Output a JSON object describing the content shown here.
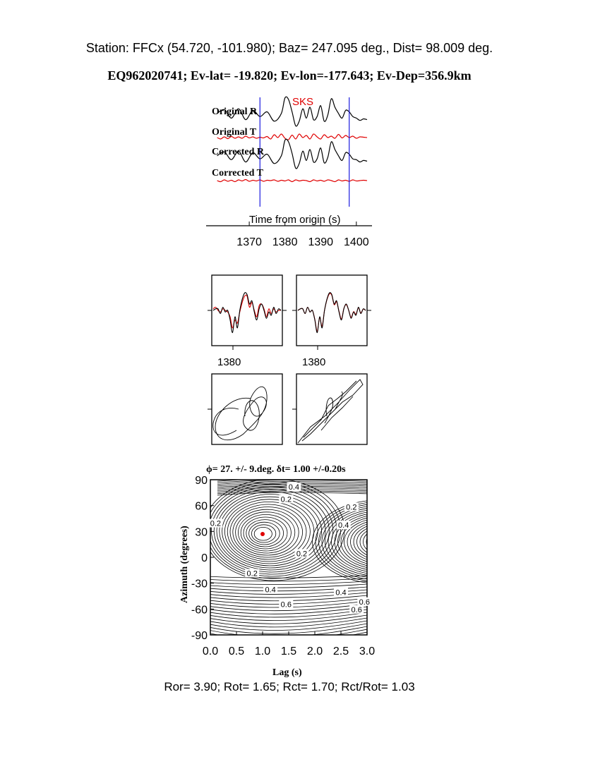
{
  "header": {
    "station_line": "Station: FFCx (54.720, -101.980); Baz=  247.095 deg., Dist=   98.009 deg.",
    "event_line": "EQ962020741; Ev-lat= -19.820; Ev-lon=-177.643; Ev-Dep=356.9km"
  },
  "footer": {
    "ratio_line": "Ror= 3.90; Rot= 1.65; Rct= 1.70; Rct/Rot= 1.03"
  },
  "colors": {
    "radial": "#000000",
    "transverse": "#e00000",
    "window_marker": "#1a1adf",
    "phase_label": "#e00000",
    "best_fit_dot": "#e00000"
  },
  "chart_data": [
    {
      "type": "line",
      "panel": "seismograms",
      "phase_label": "SKS",
      "trace_labels": [
        "Original R",
        "Original T",
        "Corrected R",
        "Corrected T"
      ],
      "xlabel": "Time from origin (s)",
      "x_ticks": [
        1370,
        1380,
        1390,
        1400
      ],
      "xlim": [
        1359.5,
        1403
      ],
      "window": [
        1373,
        1398
      ],
      "series": [
        {
          "label": "Original R",
          "color": "radial",
          "x": [
            1361,
            1363,
            1365,
            1367,
            1369,
            1371,
            1373,
            1375,
            1377,
            1379,
            1380,
            1381,
            1382,
            1383,
            1384,
            1385,
            1386,
            1387,
            1388,
            1389,
            1390,
            1391,
            1392,
            1393,
            1394,
            1395,
            1396,
            1397,
            1398,
            1399,
            1400,
            1401,
            1402,
            1403
          ],
          "y": [
            0.1,
            0.35,
            -0.2,
            0.4,
            -0.3,
            0.3,
            -0.1,
            0.2,
            -0.4,
            0.1,
            1.1,
            1.0,
            0.2,
            -0.7,
            -0.4,
            0.4,
            -0.2,
            0.5,
            -0.3,
            -0.1,
            0.6,
            -0.4,
            0.0,
            1.05,
            0.5,
            0.1,
            -0.2,
            0.3,
            0.2,
            -0.1,
            -0.2,
            -0.35,
            -0.25,
            -0.3
          ]
        },
        {
          "label": "Original T",
          "color": "transverse",
          "x": [
            1361,
            1362,
            1363,
            1364,
            1365,
            1366,
            1367,
            1368,
            1369,
            1370,
            1371,
            1372,
            1373,
            1374,
            1375,
            1376,
            1377,
            1378,
            1379,
            1380,
            1381,
            1382,
            1383,
            1384,
            1385,
            1386,
            1387,
            1388,
            1389,
            1390,
            1391,
            1392,
            1393,
            1394,
            1395,
            1396,
            1397,
            1398,
            1399,
            1400,
            1401,
            1402,
            1403
          ],
          "y": [
            -0.3,
            -0.5,
            -0.2,
            -0.45,
            -0.15,
            -0.4,
            -0.2,
            -0.4,
            -0.1,
            -0.35,
            -0.2,
            -0.4,
            -0.25,
            -0.35,
            -0.15,
            -0.5,
            0.1,
            -0.3,
            0.2,
            -0.4,
            -0.6,
            0.05,
            -0.5,
            0.2,
            -0.3,
            0.0,
            -0.5,
            0.2,
            -0.2,
            -0.5,
            0.1,
            -0.3,
            -0.1,
            -0.4,
            0.15,
            -0.35,
            0.0,
            -0.3,
            -0.1,
            -0.4,
            -0.2,
            -0.25,
            -0.3
          ]
        },
        {
          "label": "Corrected R",
          "color": "radial",
          "x": [
            1361,
            1363,
            1365,
            1367,
            1369,
            1371,
            1373,
            1375,
            1377,
            1379,
            1380,
            1381,
            1382,
            1383,
            1384,
            1385,
            1386,
            1387,
            1388,
            1389,
            1390,
            1391,
            1392,
            1393,
            1394,
            1395,
            1396,
            1397,
            1398,
            1399,
            1400,
            1401,
            1402,
            1403
          ],
          "y": [
            0.1,
            0.35,
            -0.15,
            0.4,
            -0.3,
            0.3,
            -0.1,
            0.2,
            -0.4,
            0.1,
            1.1,
            1.0,
            0.25,
            -0.7,
            -0.4,
            0.4,
            -0.2,
            0.5,
            -0.3,
            -0.1,
            0.6,
            -0.35,
            0.0,
            1.0,
            0.5,
            0.1,
            -0.2,
            0.3,
            0.2,
            -0.1,
            -0.15,
            -0.3,
            -0.2,
            -0.25
          ]
        },
        {
          "label": "Corrected T",
          "color": "transverse",
          "x": [
            1361,
            1362,
            1363,
            1364,
            1365,
            1366,
            1367,
            1368,
            1369,
            1370,
            1371,
            1372,
            1373,
            1374,
            1375,
            1376,
            1377,
            1378,
            1379,
            1380,
            1381,
            1382,
            1383,
            1384,
            1385,
            1386,
            1387,
            1388,
            1389,
            1390,
            1391,
            1392,
            1393,
            1394,
            1395,
            1396,
            1397,
            1398,
            1399,
            1400,
            1401,
            1402,
            1403
          ],
          "y": [
            -0.3,
            -0.45,
            -0.2,
            -0.4,
            -0.25,
            -0.45,
            -0.2,
            -0.35,
            -0.15,
            -0.4,
            -0.25,
            -0.35,
            -0.2,
            -0.4,
            -0.25,
            -0.3,
            -0.2,
            -0.4,
            -0.25,
            -0.35,
            -0.2,
            -0.45,
            -0.2,
            -0.35,
            -0.25,
            -0.3,
            -0.45,
            -0.2,
            -0.35,
            -0.25,
            -0.4,
            -0.2,
            -0.3,
            -0.45,
            -0.2,
            -0.35,
            -0.25,
            -0.4,
            -0.2,
            -0.35,
            -0.3,
            -0.25,
            -0.3
          ]
        }
      ]
    },
    {
      "type": "line",
      "panel": "waveform-overlay",
      "charts": [
        {
          "name": "left",
          "x_tick_label": "1380",
          "black": [
            0.0,
            0.05,
            0.05,
            -0.1,
            0.1,
            -0.05,
            0.0,
            -0.3,
            -0.7,
            -0.2,
            -0.55,
            0.0,
            0.35,
            0.55,
            0.5,
            0.2,
            0.3,
            -0.05,
            -0.3,
            0.05,
            0.2,
            0.0,
            -0.25,
            -0.05,
            -0.15,
            0.1,
            -0.1,
            0.05,
            0.0
          ],
          "red": [
            0.05,
            0.1,
            0.0,
            -0.05,
            0.05,
            0.0,
            -0.05,
            -0.2,
            -0.55,
            -0.3,
            -0.4,
            -0.05,
            0.25,
            0.45,
            0.45,
            0.1,
            0.25,
            0.0,
            -0.2,
            0.15,
            0.2,
            0.05,
            -0.2,
            0.05,
            -0.1,
            0.05,
            -0.05,
            0.0,
            0.0
          ]
        },
        {
          "name": "right",
          "x_tick_label": "1380",
          "black": [
            0.0,
            0.05,
            0.05,
            -0.1,
            0.1,
            -0.05,
            0.0,
            -0.3,
            -0.7,
            -0.2,
            -0.55,
            0.0,
            0.35,
            0.55,
            0.5,
            0.2,
            0.3,
            -0.05,
            -0.3,
            0.05,
            0.2,
            0.0,
            -0.25,
            -0.05,
            -0.15,
            0.1,
            -0.1,
            0.05,
            0.0
          ],
          "red": [
            0.0,
            0.05,
            0.05,
            -0.1,
            0.1,
            -0.05,
            0.0,
            -0.28,
            -0.66,
            -0.22,
            -0.5,
            0.0,
            0.33,
            0.52,
            0.48,
            0.18,
            0.27,
            -0.03,
            -0.27,
            0.06,
            0.18,
            0.0,
            -0.22,
            -0.04,
            -0.12,
            0.08,
            -0.08,
            0.04,
            0.0
          ]
        }
      ]
    },
    {
      "type": "line",
      "panel": "particle-motion",
      "charts": [
        {
          "name": "left",
          "shape": "broad-elliptical"
        },
        {
          "name": "right",
          "shape": "linearized"
        }
      ]
    },
    {
      "type": "heatmap",
      "panel": "energy-contour",
      "title": "ϕ= 27. +/- 9.deg. δt= 1.00 +/-0.20s",
      "xlabel": "Lag (s)",
      "ylabel": "Azimuth (degrees)",
      "xlim": [
        0.0,
        3.0
      ],
      "ylim": [
        -90,
        90
      ],
      "x_ticks": [
        "0.0",
        "0.5",
        "1.0",
        "1.5",
        "2.0",
        "2.5",
        "3.0"
      ],
      "y_ticks": [
        "90",
        "60",
        "30",
        "0",
        "-30",
        "-60",
        "-90"
      ],
      "best_fit": {
        "lag": 1.0,
        "azimuth": 27
      },
      "contour_labels": [
        {
          "text": "0.4",
          "lag": 1.6,
          "azimuth": 80
        },
        {
          "text": "0.2",
          "lag": 1.45,
          "azimuth": 66
        },
        {
          "text": "0.2",
          "lag": 2.7,
          "azimuth": 57
        },
        {
          "text": "0.4",
          "lag": 2.55,
          "azimuth": 36
        },
        {
          "text": "0.2",
          "lag": 0.1,
          "azimuth": 38
        },
        {
          "text": "0.2",
          "lag": 1.75,
          "azimuth": 3
        },
        {
          "text": "0.2",
          "lag": 0.8,
          "azimuth": -20
        },
        {
          "text": "0.4",
          "lag": 1.15,
          "azimuth": -39
        },
        {
          "text": "0.4",
          "lag": 2.5,
          "azimuth": -42
        },
        {
          "text": "0.6",
          "lag": 1.45,
          "azimuth": -56
        },
        {
          "text": "0.6",
          "lag": 2.95,
          "azimuth": -53
        },
        {
          "text": "0.6",
          "lag": 2.8,
          "azimuth": -62
        }
      ]
    }
  ]
}
